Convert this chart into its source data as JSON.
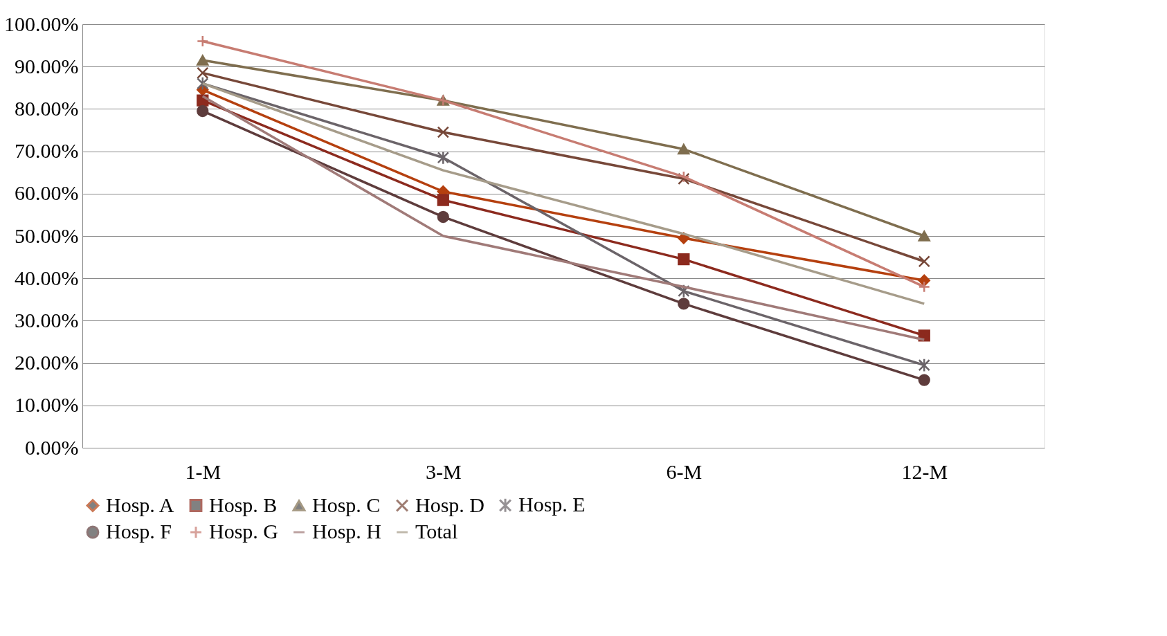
{
  "chart_data": {
    "type": "line",
    "categories": [
      "1-M",
      "3-M",
      "6-M",
      "12-M"
    ],
    "ylim": [
      0,
      100
    ],
    "yticks": [
      {
        "value": 0,
        "label": "0.00%"
      },
      {
        "value": 10,
        "label": "10.00%"
      },
      {
        "value": 20,
        "label": "20.00%"
      },
      {
        "value": 30,
        "label": "30.00%"
      },
      {
        "value": 40,
        "label": "40.00%"
      },
      {
        "value": 50,
        "label": "50.00%"
      },
      {
        "value": 60,
        "label": "60.00%"
      },
      {
        "value": 70,
        "label": "70.00%"
      },
      {
        "value": 80,
        "label": "80.00%"
      },
      {
        "value": 90,
        "label": "90.00%"
      },
      {
        "value": 100,
        "label": "100.00%"
      }
    ],
    "grid": "y",
    "legend": "bottom",
    "line_style": "solid",
    "series": [
      {
        "name": "Hosp. A",
        "color": "#b5400f",
        "marker": "diamond",
        "values": [
          84.5,
          60.5,
          49.5,
          39.5
        ]
      },
      {
        "name": "Hosp. B",
        "color": "#8c2a1e",
        "marker": "square",
        "values": [
          82,
          58.5,
          44.5,
          26.5
        ]
      },
      {
        "name": "Hosp. C",
        "color": "#7f6e4f",
        "marker": "triangle",
        "values": [
          91.5,
          82,
          70.5,
          50
        ]
      },
      {
        "name": "Hosp. D",
        "color": "#774839",
        "marker": "cross",
        "values": [
          88.5,
          74.5,
          63.5,
          44
        ]
      },
      {
        "name": "Hosp. E",
        "color": "#6b6469",
        "marker": "cross",
        "values": [
          86,
          68.5,
          37,
          19.5
        ]
      },
      {
        "name": "Hosp. F",
        "color": "#5e3c3c",
        "marker": "circle",
        "values": [
          79.5,
          54.5,
          34,
          16
        ]
      },
      {
        "name": "Hosp. G",
        "color": "#c77c72",
        "marker": "cross",
        "values": [
          96,
          82,
          64,
          38
        ]
      },
      {
        "name": "Hosp. H",
        "color": "#a07a78",
        "marker": "none",
        "values": [
          83,
          50,
          38,
          25.5
        ]
      },
      {
        "name": "Total",
        "color": "#a69c8a",
        "marker": "none",
        "values": [
          86,
          65.5,
          50.5,
          34
        ]
      }
    ]
  }
}
